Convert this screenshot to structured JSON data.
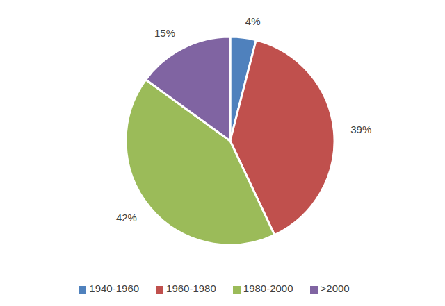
{
  "chart_data": {
    "type": "pie",
    "categories": [
      "1940-1960",
      "1960-1980",
      "1980-2000",
      ">2000"
    ],
    "values": [
      4,
      39,
      42,
      15
    ],
    "value_labels": [
      "4%",
      "39%",
      "42%",
      "15%"
    ],
    "colors": [
      "#4f81bd",
      "#c0504d",
      "#9bbb59",
      "#8064a2"
    ],
    "data_labels": true,
    "legend": "bottom"
  }
}
